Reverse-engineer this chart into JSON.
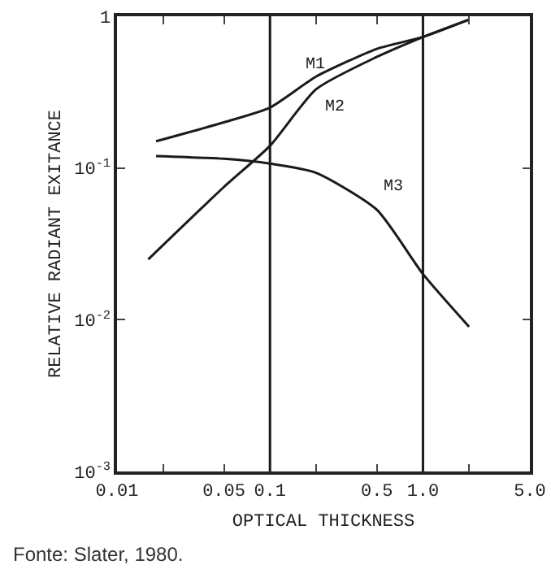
{
  "chart_data": {
    "type": "line",
    "xlabel": "OPTICAL THICKNESS",
    "ylabel": "RELATIVE RADIANT EXITANCE",
    "log": "xy",
    "grid": false,
    "legend": false,
    "marker": "none",
    "line_style": "solid",
    "x": [
      0.018,
      0.05,
      0.1,
      0.2,
      0.5,
      1.0,
      2.0
    ],
    "series": [
      {
        "name": "M1",
        "color": "#1a1a1a",
        "values": [
          0.15,
          0.2,
          0.25,
          0.4,
          0.61,
          0.73,
          0.95
        ]
      },
      {
        "name": "M2",
        "color": "#1a1a1a",
        "x": [
          0.016,
          0.05,
          0.1,
          0.2,
          0.5,
          1.0,
          2.0
        ],
        "values": [
          0.025,
          0.075,
          0.14,
          0.33,
          0.54,
          0.73,
          0.95
        ]
      },
      {
        "name": "M3",
        "color": "#1a1a1a",
        "values": [
          0.12,
          0.115,
          0.107,
          0.093,
          0.053,
          0.02,
          0.009
        ]
      }
    ],
    "xlim": [
      0.01,
      5
    ],
    "xticks": [
      0.01,
      {
        "value": 0.02,
        "label": null
      },
      0.05,
      0.1,
      {
        "value": 0.2,
        "label": null
      },
      0.5,
      {
        "value": 1,
        "label": "1.0"
      },
      {
        "value": 2,
        "label": null
      },
      {
        "value": 5,
        "label": "5.0"
      }
    ],
    "ylim": [
      0.001,
      1
    ],
    "yticks": [
      {
        "value": 0.001,
        "label": "10$^{-3}$"
      },
      {
        "value": 0.01,
        "label": "10$^{-2}$"
      },
      {
        "value": 0.1,
        "label": "10$^{-1}$"
      },
      1
    ],
    "ref_lines": [
      {
        "axis": "x",
        "value": 0.1,
        "color": "#1a1a1a"
      },
      {
        "axis": "x",
        "value": 1,
        "color": "#1a1a1a"
      }
    ],
    "annotations": [
      "Fonte: Slater, 1980."
    ]
  }
}
